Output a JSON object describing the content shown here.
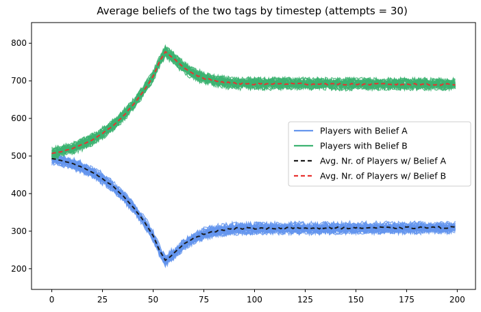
{
  "chart_data": {
    "type": "line",
    "title": "Average beliefs of the two tags by timestep (attempts = 30)",
    "xlabel": "",
    "ylabel": "",
    "xlim": [
      -10,
      209
    ],
    "ylim": [
      145,
      855
    ],
    "x_ticks": [
      0,
      25,
      50,
      75,
      100,
      125,
      150,
      175,
      200
    ],
    "y_ticks": [
      200,
      300,
      400,
      500,
      600,
      700,
      800
    ],
    "grid": false,
    "legend_position": "center-right",
    "attempts": 30,
    "x_range": [
      0,
      199
    ],
    "series": [
      {
        "name": "Players with Belief A",
        "style": "solid",
        "color": "#6495ed",
        "kind": "band",
        "x": [
          0,
          5,
          10,
          15,
          20,
          25,
          30,
          35,
          40,
          45,
          50,
          53,
          56,
          60,
          65,
          70,
          75,
          80,
          85,
          90,
          100,
          120,
          150,
          175,
          199
        ],
        "values": [
          493,
          488,
          480,
          470,
          457,
          440,
          420,
          395,
          365,
          330,
          288,
          250,
          222,
          240,
          265,
          282,
          293,
          300,
          304,
          307,
          308,
          308,
          309,
          309,
          310
        ],
        "spread": 18
      },
      {
        "name": "Players with Belief B",
        "style": "solid",
        "color": "#3cb371",
        "kind": "band",
        "x": [
          0,
          5,
          10,
          15,
          20,
          25,
          30,
          35,
          40,
          45,
          50,
          53,
          56,
          60,
          65,
          70,
          75,
          80,
          85,
          90,
          100,
          120,
          150,
          175,
          199
        ],
        "values": [
          507,
          512,
          520,
          530,
          543,
          560,
          580,
          605,
          635,
          670,
          712,
          750,
          778,
          760,
          735,
          718,
          707,
          700,
          696,
          693,
          692,
          692,
          691,
          691,
          690
        ],
        "spread": 18
      },
      {
        "name": "Avg. Nr. of Players w/ Belief A",
        "style": "dashed",
        "color": "#1a1a1a",
        "kind": "line",
        "x": [
          0,
          5,
          10,
          15,
          20,
          25,
          30,
          35,
          40,
          45,
          50,
          53,
          56,
          60,
          65,
          70,
          75,
          80,
          85,
          90,
          100,
          120,
          150,
          175,
          199
        ],
        "values": [
          493,
          488,
          480,
          470,
          457,
          440,
          420,
          395,
          365,
          330,
          288,
          250,
          222,
          240,
          265,
          282,
          293,
          300,
          304,
          307,
          308,
          308,
          309,
          309,
          310
        ]
      },
      {
        "name": "Avg. Nr. of Players w/ Belief B",
        "style": "dashed",
        "color": "#e8312f",
        "kind": "line",
        "x": [
          0,
          5,
          10,
          15,
          20,
          25,
          30,
          35,
          40,
          45,
          50,
          53,
          56,
          60,
          65,
          70,
          75,
          80,
          85,
          90,
          100,
          120,
          150,
          175,
          199
        ],
        "values": [
          507,
          512,
          520,
          530,
          543,
          560,
          580,
          605,
          635,
          670,
          712,
          750,
          778,
          760,
          735,
          718,
          707,
          700,
          696,
          693,
          692,
          692,
          691,
          691,
          690
        ]
      }
    ]
  }
}
